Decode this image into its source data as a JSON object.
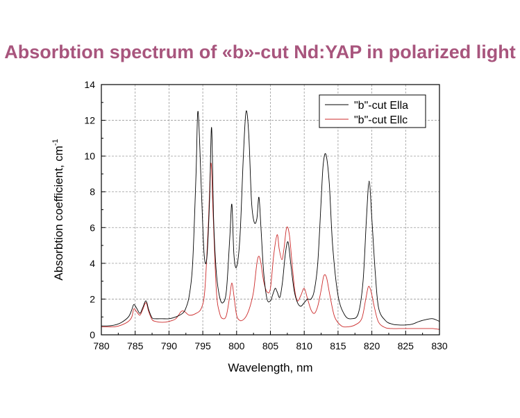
{
  "title": "Absorbtion spectrum of «b»-cut Nd:YAP in polarized light",
  "chart_data": {
    "type": "line",
    "xlabel": "Wavelength, nm",
    "ylabel_main": "Absorbtion coefficient, cm",
    "ylabel_sup": "-1",
    "xlim": [
      780,
      830
    ],
    "ylim": [
      0,
      14
    ],
    "x_ticks": [
      "780",
      "785",
      "790",
      "795",
      "800",
      "805",
      "810",
      "815",
      "820",
      "825",
      "830"
    ],
    "y_ticks": [
      "0",
      "2",
      "4",
      "6",
      "8",
      "10",
      "12",
      "14"
    ],
    "grid": true,
    "legend_position": "top-right",
    "series": [
      {
        "name": "\"b\"-cut Ella",
        "color": "#000000",
        "x": [
          780,
          781,
          782,
          783,
          784,
          784.5,
          784.8,
          785.2,
          785.7,
          786.1,
          786.6,
          787,
          787.5,
          788,
          789,
          790,
          791,
          792,
          792.5,
          793,
          793.5,
          794,
          794.3,
          794.8,
          795.2,
          795.6,
          796,
          796.3,
          796.6,
          797,
          797.5,
          798,
          798.5,
          799,
          799.3,
          799.6,
          800,
          800.5,
          801,
          801.4,
          801.8,
          802.2,
          802.6,
          803,
          803.3,
          803.6,
          804,
          804.5,
          805,
          805.3,
          805.7,
          806,
          806.4,
          806.8,
          807.2,
          807.6,
          808,
          808.5,
          809,
          809.5,
          810,
          810.5,
          811,
          811.5,
          812,
          812.5,
          812.8,
          813.2,
          813.7,
          814.2,
          815,
          816,
          817,
          818,
          818.7,
          819.2,
          819.6,
          820,
          820.5,
          821,
          822,
          823,
          824,
          825,
          826,
          827,
          828,
          829,
          830
        ],
        "values": [
          0.5,
          0.5,
          0.55,
          0.7,
          1.0,
          1.4,
          1.7,
          1.5,
          1.2,
          1.5,
          1.9,
          1.4,
          0.95,
          0.9,
          0.9,
          0.9,
          1.0,
          1.2,
          1.5,
          2.2,
          4.0,
          9.0,
          12.5,
          8.0,
          4.5,
          4.3,
          7.5,
          11.6,
          6.5,
          3.5,
          2.1,
          1.8,
          2.5,
          5.5,
          7.3,
          4.5,
          3.8,
          5.5,
          10.0,
          12.5,
          11.2,
          7.5,
          6.3,
          6.5,
          7.7,
          6.0,
          3.5,
          2.0,
          1.9,
          2.2,
          2.6,
          2.4,
          2.1,
          3.0,
          4.5,
          5.2,
          4.0,
          2.5,
          1.8,
          1.6,
          1.8,
          2.0,
          2.0,
          2.5,
          4.0,
          7.5,
          9.5,
          10.1,
          8.5,
          5.0,
          2.2,
          1.1,
          0.9,
          1.2,
          3.0,
          6.5,
          8.6,
          6.5,
          3.5,
          1.5,
          0.8,
          0.6,
          0.55,
          0.55,
          0.6,
          0.75,
          0.85,
          0.9,
          0.75
        ]
      },
      {
        "name": "\"b\"-cut Ellc",
        "color": "#cc2a2a",
        "x": [
          780,
          781,
          782,
          783,
          784,
          784.5,
          784.8,
          785.2,
          785.7,
          786.1,
          786.6,
          787,
          787.5,
          788,
          789,
          790,
          791,
          791.8,
          792.3,
          793,
          794,
          794.8,
          795.3,
          795.8,
          796.2,
          796.5,
          797,
          797.5,
          798,
          798.5,
          799,
          799.3,
          799.6,
          800,
          800.5,
          801,
          801.5,
          802,
          802.5,
          803,
          803.3,
          803.6,
          804,
          804.5,
          805,
          805.5,
          806,
          806.3,
          806.7,
          807,
          807.4,
          807.8,
          808.2,
          808.6,
          809,
          809.5,
          810,
          810.5,
          811,
          811.5,
          812,
          812.5,
          812.9,
          813.3,
          813.8,
          814.5,
          815.5,
          816.5,
          817.5,
          818.5,
          819.1,
          819.5,
          819.9,
          820.4,
          821,
          822,
          823,
          824,
          825,
          826,
          827,
          828,
          829,
          830
        ],
        "values": [
          0.45,
          0.45,
          0.45,
          0.55,
          0.75,
          1.0,
          1.45,
          1.3,
          1.1,
          1.4,
          1.8,
          1.3,
          0.85,
          0.75,
          0.7,
          0.75,
          0.9,
          1.3,
          1.3,
          1.1,
          1.2,
          1.5,
          2.5,
          6.0,
          9.6,
          7.0,
          2.5,
          1.2,
          0.9,
          1.1,
          2.2,
          2.9,
          2.2,
          1.1,
          0.8,
          0.85,
          1.1,
          1.6,
          2.4,
          4.0,
          4.4,
          4.0,
          3.0,
          2.4,
          2.6,
          4.5,
          5.6,
          4.8,
          4.2,
          4.8,
          6.0,
          5.6,
          4.0,
          2.5,
          1.9,
          2.2,
          2.6,
          2.0,
          1.4,
          1.2,
          1.6,
          2.5,
          3.3,
          3.2,
          2.2,
          1.0,
          0.5,
          0.45,
          0.55,
          0.9,
          2.0,
          2.7,
          2.4,
          1.5,
          0.7,
          0.4,
          0.35,
          0.35,
          0.35,
          0.35,
          0.35,
          0.35,
          0.35,
          0.3
        ]
      }
    ]
  }
}
